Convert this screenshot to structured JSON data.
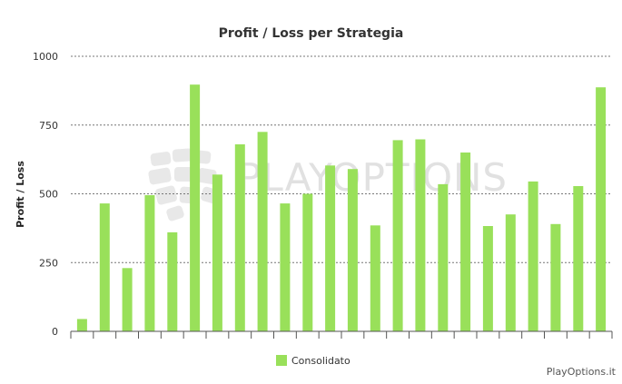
{
  "chart_data": {
    "type": "bar",
    "title": "Profit / Loss per Strategia",
    "xlabel": "",
    "ylabel": "Profit / Loss",
    "ylim": [
      0,
      1000
    ],
    "yticks": [
      "0",
      "250",
      "500",
      "750",
      "1000"
    ],
    "grid": true,
    "legend_position": "bottom-center",
    "series": [
      {
        "name": "Consolidato",
        "color": "#99e05a",
        "values": [
          45,
          465,
          230,
          495,
          360,
          897,
          570,
          680,
          725,
          465,
          500,
          603,
          590,
          385,
          695,
          698,
          535,
          650,
          383,
          425,
          545,
          390,
          528,
          887
        ]
      }
    ]
  },
  "watermark": {
    "text": "PLAYOPTIONS"
  },
  "credits": {
    "text": "PlayOptions.it"
  }
}
